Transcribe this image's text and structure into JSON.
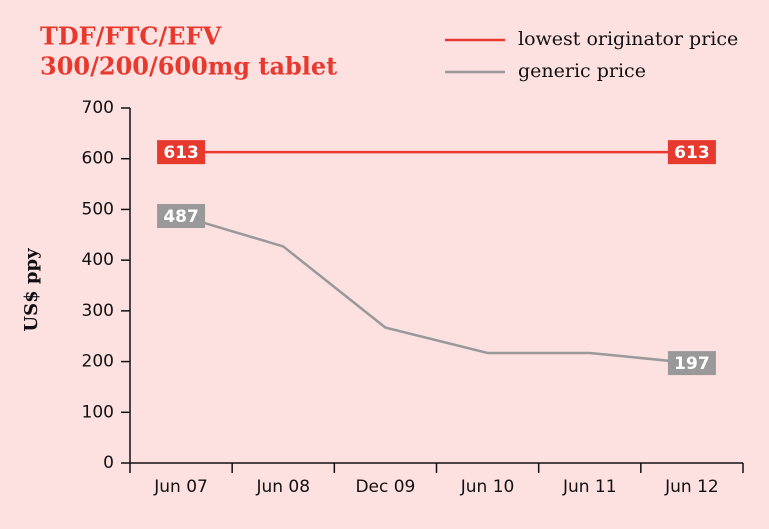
{
  "chart_data": {
    "type": "line",
    "title": [
      "TDF/FTC/EFV",
      "300/200/600mg tablet"
    ],
    "y_label": "US$ ppy",
    "categories": [
      "Jun 07",
      "Jun 08",
      "Dec 09",
      "Jun 10",
      "Jun 11",
      "Jun 12"
    ],
    "series": [
      {
        "name": "lowest originator price",
        "color": "#e8392f",
        "values": [
          613,
          613,
          613,
          613,
          613,
          613
        ]
      },
      {
        "name": "generic price",
        "color": "#999999",
        "values": [
          487,
          427,
          267,
          217,
          217,
          197
        ]
      }
    ],
    "ylim": [
      0,
      700
    ],
    "yticks": [
      0,
      100,
      200,
      300,
      400,
      500,
      600,
      700
    ],
    "legend": "top-right"
  }
}
